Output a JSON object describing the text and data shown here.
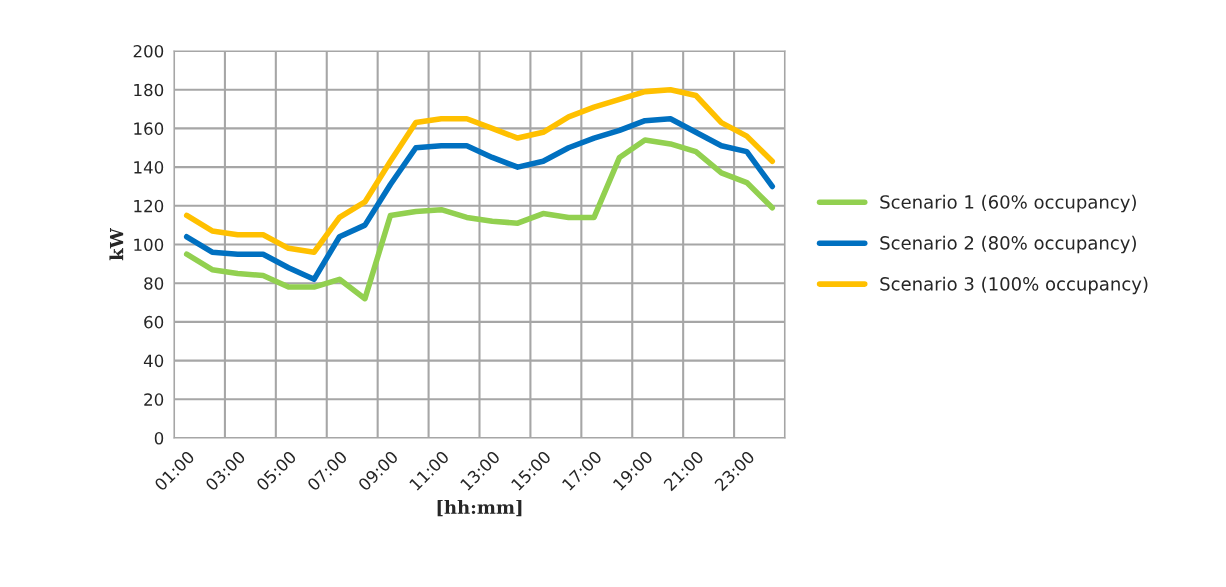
{
  "chart_data": {
    "type": "line",
    "xlabel": "[hh:mm]",
    "ylabel": "kW",
    "categories": [
      "01:00",
      null,
      "03:00",
      null,
      "05:00",
      null,
      "07:00",
      null,
      "09:00",
      null,
      "11:00",
      null,
      "13:00",
      null,
      "15:00",
      null,
      "17:00",
      null,
      "19:00",
      null,
      "21:00",
      null,
      "23:00",
      null
    ],
    "series": [
      {
        "name": "Scenario 1 (60% occupancy)",
        "color": "#92d050",
        "values": [
          95,
          87,
          85,
          84,
          78,
          78,
          82,
          72,
          115,
          117,
          118,
          114,
          112,
          111,
          116,
          114,
          114,
          145,
          154,
          152,
          148,
          137,
          132,
          119
        ]
      },
      {
        "name": "Scenario 2 (80% occupancy)",
        "color": "#0070c0",
        "values": [
          104,
          96,
          95,
          95,
          88,
          82,
          104,
          110,
          131,
          150,
          151,
          151,
          145,
          140,
          143,
          150,
          155,
          159,
          164,
          165,
          158,
          151,
          148,
          130
        ]
      },
      {
        "name": "Scenario 3 (100% occupancy)",
        "color": "#ffc000",
        "values": [
          115,
          107,
          105,
          105,
          98,
          96,
          114,
          122,
          143,
          163,
          165,
          165,
          160,
          155,
          158,
          166,
          171,
          175,
          179,
          180,
          177,
          163,
          156,
          143
        ]
      }
    ],
    "ylim": [
      0,
      200
    ],
    "yticks": [
      0,
      20,
      40,
      60,
      80,
      100,
      120,
      140,
      160,
      180,
      200
    ],
    "grid": true,
    "legend": "right",
    "marker": "none",
    "line_style": "solid"
  }
}
